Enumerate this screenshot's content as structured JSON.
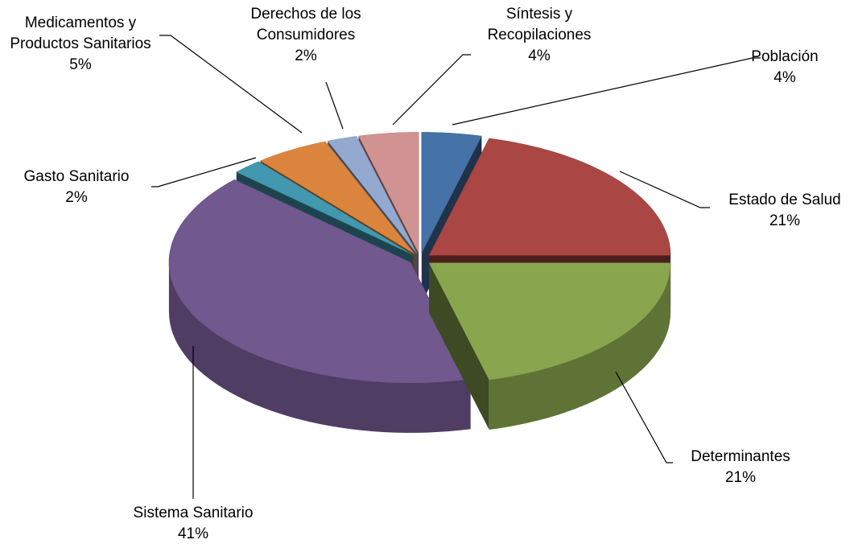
{
  "chart_data": {
    "type": "pie",
    "categories": [
      "Población",
      "Estado de Salud",
      "Determinantes",
      "Sistema Sanitario",
      "Gasto Sanitario",
      "Medicamentos y Productos Sanitarios",
      "Derechos de los Consumidores",
      "Síntesis y Recopilaciones"
    ],
    "values": [
      4,
      21,
      21,
      41,
      2,
      5,
      2,
      4
    ],
    "value_labels": [
      "4%",
      "21%",
      "21%",
      "41%",
      "2%",
      "5%",
      "2%",
      "4%"
    ],
    "colors": [
      "#4572a7",
      "#aa4643",
      "#89a54e",
      "#71588f",
      "#4198af",
      "#db843d",
      "#93a9cf",
      "#d19392"
    ]
  }
}
